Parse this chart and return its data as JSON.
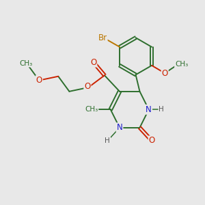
{
  "bg_color": "#e8e8e8",
  "bond_color": "#2d6e2d",
  "bond_width": 1.4,
  "atom_colors": {
    "C": "#2d6e2d",
    "N": "#1a1acc",
    "O": "#cc2200",
    "Br": "#bb7700",
    "H": "#555555"
  },
  "font_size": 8.5,
  "xlim": [
    0,
    10
  ],
  "ylim": [
    0,
    10
  ]
}
